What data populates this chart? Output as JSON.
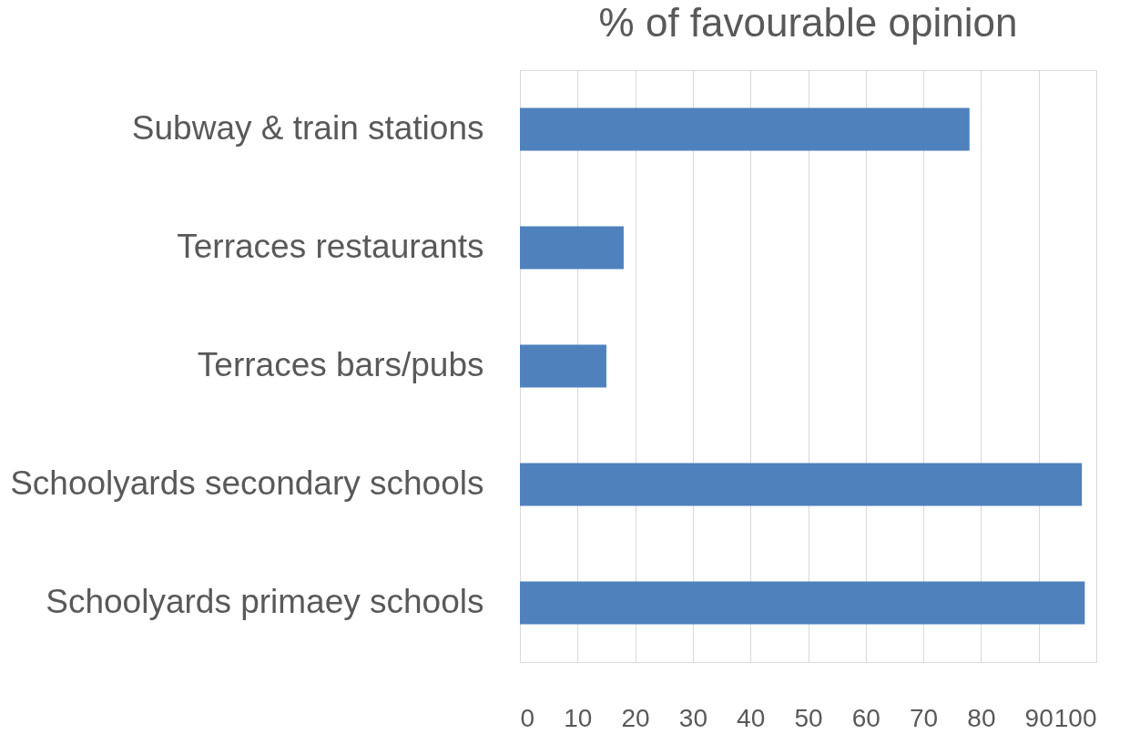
{
  "chart_data": {
    "type": "bar",
    "orientation": "horizontal",
    "title": "% of favourable opinion",
    "categories": [
      "Subway & train stations",
      "Terraces restaurants",
      "Terraces bars/pubs",
      "Schoolyards secondary schools",
      "Schoolyards primaey schools"
    ],
    "values": [
      78,
      18,
      15,
      97.5,
      98
    ],
    "color": "#4f81bd",
    "xlim": [
      0,
      100
    ],
    "xticks": [
      0,
      10,
      20,
      30,
      40,
      50,
      60,
      70,
      80,
      90,
      100
    ],
    "grid": "x"
  }
}
